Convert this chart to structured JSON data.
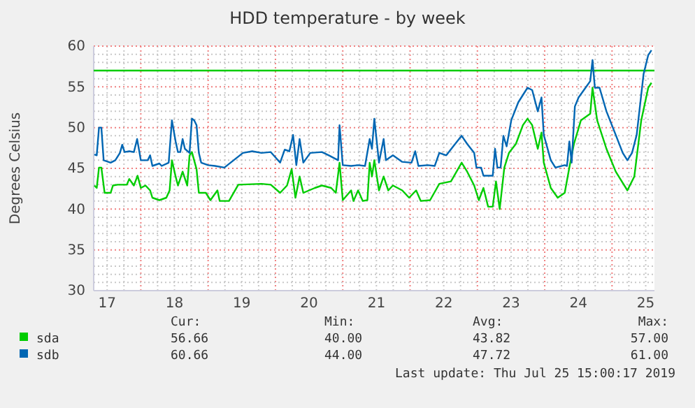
{
  "chart_data": {
    "type": "line",
    "title": "HDD temperature - by week",
    "ylabel": "Degrees Celsius",
    "xlim": [
      17.3,
      25.63
    ],
    "ylim": [
      30,
      60
    ],
    "xticks": [
      {
        "value": 17.5,
        "label": "17"
      },
      {
        "value": 17.75,
        "label": null
      },
      {
        "value": 18,
        "label": null
      },
      {
        "value": 18.25,
        "label": null
      },
      {
        "value": 18.5,
        "label": "18"
      },
      {
        "value": 18.75,
        "label": null
      },
      {
        "value": 19,
        "label": null
      },
      {
        "value": 19.25,
        "label": null
      },
      {
        "value": 19.5,
        "label": "19"
      },
      {
        "value": 19.75,
        "label": null
      },
      {
        "value": 20,
        "label": null
      },
      {
        "value": 20.25,
        "label": null
      },
      {
        "value": 20.5,
        "label": "20"
      },
      {
        "value": 20.75,
        "label": null
      },
      {
        "value": 21,
        "label": null
      },
      {
        "value": 21.25,
        "label": null
      },
      {
        "value": 21.5,
        "label": "21"
      },
      {
        "value": 21.75,
        "label": null
      },
      {
        "value": 22,
        "label": null
      },
      {
        "value": 22.25,
        "label": null
      },
      {
        "value": 22.5,
        "label": "22"
      },
      {
        "value": 22.75,
        "label": null
      },
      {
        "value": 23,
        "label": null
      },
      {
        "value": 23.25,
        "label": null
      },
      {
        "value": 23.5,
        "label": "23"
      },
      {
        "value": 23.75,
        "label": null
      },
      {
        "value": 24,
        "label": null
      },
      {
        "value": 24.25,
        "label": null
      },
      {
        "value": 24.5,
        "label": "24"
      },
      {
        "value": 24.75,
        "label": null
      },
      {
        "value": 25,
        "label": null
      },
      {
        "value": 25.25,
        "label": null
      },
      {
        "value": 25.5,
        "label": "25"
      }
    ],
    "yticks": [
      30,
      {
        "value": 31,
        "label": null
      },
      {
        "value": 32,
        "label": null
      },
      {
        "value": 33,
        "label": null
      },
      {
        "value": 34,
        "label": null
      },
      35,
      {
        "value": 36,
        "label": null
      },
      {
        "value": 37,
        "label": null
      },
      {
        "value": 38,
        "label": null
      },
      {
        "value": 39,
        "label": null
      },
      40,
      {
        "value": 41,
        "label": null
      },
      {
        "value": 42,
        "label": null
      },
      {
        "value": 43,
        "label": null
      },
      {
        "value": 44,
        "label": null
      },
      45,
      {
        "value": 46,
        "label": null
      },
      {
        "value": 47,
        "label": null
      },
      {
        "value": 48,
        "label": null
      },
      {
        "value": 49,
        "label": null
      },
      50,
      {
        "value": 51,
        "label": null
      },
      {
        "value": 52,
        "label": null
      },
      {
        "value": 53,
        "label": null
      },
      {
        "value": 54,
        "label": null
      },
      55,
      {
        "value": 56,
        "label": null
      },
      {
        "value": 57,
        "label": null
      },
      {
        "value": 58,
        "label": null
      },
      {
        "value": 59,
        "label": null
      },
      60
    ],
    "grid": true,
    "legend": "bottom",
    "line_style": "solid",
    "ref_lines": [
      {
        "axis": "y",
        "value": 57,
        "color": "#00cc00"
      }
    ],
    "series": [
      {
        "name": "sda",
        "color": "#00cc00",
        "x": [
          17.31,
          17.345,
          17.379,
          17.414,
          17.462,
          17.552,
          17.586,
          17.655,
          17.793,
          17.828,
          17.897,
          17.952,
          18,
          18.069,
          18.138,
          18.172,
          18.276,
          18.379,
          18.428,
          18.462,
          18.517,
          18.552,
          18.621,
          18.69,
          18.724,
          18.759,
          18.828,
          18.862,
          18.966,
          19.034,
          19.138,
          19.172,
          19.31,
          19.448,
          19.793,
          19.931,
          20.069,
          20.172,
          20.241,
          20.297,
          20.359,
          20.414,
          20.586,
          20.69,
          20.828,
          20.897,
          20.952,
          21,
          21.124,
          21.159,
          21.228,
          21.297,
          21.366,
          21.4,
          21.434,
          21.469,
          21.538,
          21.607,
          21.676,
          21.745,
          21.883,
          21.986,
          22.09,
          22.159,
          22.297,
          22.4,
          22.434,
          22.607,
          22.766,
          22.848,
          22.952,
          23.021,
          23.09,
          23.159,
          23.228,
          23.276,
          23.331,
          23.4,
          23.469,
          23.572,
          23.676,
          23.745,
          23.814,
          23.897,
          23.952,
          23.986,
          24.09,
          24.193,
          24.297,
          24.366,
          24.434,
          24.538,
          24.676,
          24.71,
          24.779,
          24.917,
          25.055,
          25.228,
          25.331,
          25.434,
          25.538,
          25.586
        ],
        "values": [
          42.9,
          42.6,
          45.1,
          45.1,
          42,
          42,
          42.9,
          43,
          43,
          43.7,
          42.9,
          44.1,
          42.6,
          42.9,
          42.3,
          41.4,
          41.1,
          41.4,
          42.3,
          46,
          44,
          42.9,
          44.6,
          42.9,
          46.6,
          47,
          44.9,
          42,
          42,
          41.1,
          42.3,
          41,
          41,
          43,
          43.1,
          43,
          42,
          42.9,
          44.9,
          41.4,
          44,
          42,
          42.6,
          42.9,
          42.6,
          42,
          45.7,
          41.1,
          42.3,
          41,
          42.3,
          41,
          41.1,
          45.7,
          44,
          46,
          42.3,
          44,
          42.3,
          42.9,
          42.3,
          41.4,
          42.3,
          41,
          41.1,
          42.6,
          43.1,
          43.4,
          45.7,
          44.6,
          42.9,
          41.1,
          42.6,
          40.3,
          40.3,
          43.4,
          40,
          45.1,
          46.9,
          48,
          50.3,
          51.1,
          50.3,
          47.4,
          49.4,
          45.7,
          42.6,
          41.4,
          42,
          45.1,
          48,
          50.9,
          51.7,
          54.9,
          50.9,
          47.4,
          44.6,
          42.3,
          44,
          50.9,
          54.9,
          55.5
        ]
      },
      {
        "name": "sdb",
        "color": "#0066b3",
        "x": [
          17.31,
          17.345,
          17.379,
          17.414,
          17.448,
          17.552,
          17.621,
          17.69,
          17.724,
          17.759,
          17.828,
          17.897,
          17.945,
          17.979,
          18,
          18.103,
          18.138,
          18.172,
          18.276,
          18.31,
          18.414,
          18.462,
          18.517,
          18.552,
          18.586,
          18.621,
          18.655,
          18.724,
          18.759,
          18.793,
          18.828,
          18.862,
          18.897,
          19,
          19.103,
          19.241,
          19.379,
          19.517,
          19.655,
          19.793,
          19.931,
          20.069,
          20.138,
          20.207,
          20.262,
          20.31,
          20.359,
          20.414,
          20.517,
          20.69,
          20.793,
          20.862,
          20.931,
          20.952,
          21,
          21.124,
          21.228,
          21.331,
          21.4,
          21.434,
          21.469,
          21.538,
          21.607,
          21.641,
          21.745,
          21.883,
          22.021,
          22.076,
          22.124,
          22.262,
          22.366,
          22.434,
          22.538,
          22.641,
          22.766,
          22.848,
          22.952,
          22.986,
          23.055,
          23.09,
          23.228,
          23.262,
          23.297,
          23.345,
          23.386,
          23.434,
          23.503,
          23.607,
          23.676,
          23.745,
          23.814,
          23.897,
          23.952,
          23.986,
          24.09,
          24.159,
          24.297,
          24.331,
          24.366,
          24.4,
          24.448,
          24.503,
          24.607,
          24.676,
          24.71,
          24.745,
          24.814,
          24.917,
          25.055,
          25.159,
          25.228,
          25.297,
          25.366,
          25.469,
          25.538,
          25.586
        ],
        "values": [
          46.7,
          46.6,
          50,
          50,
          46,
          45.7,
          46,
          46.9,
          47.9,
          47,
          47.1,
          47,
          48.6,
          47,
          46,
          46,
          46.6,
          45.3,
          45.6,
          45.3,
          45.7,
          50.9,
          48.3,
          47,
          47,
          48.6,
          47.4,
          46.9,
          51.1,
          50.9,
          50.3,
          46.9,
          45.7,
          45.4,
          45.3,
          45.1,
          46,
          46.9,
          47.1,
          46.9,
          47,
          45.7,
          47.3,
          47.1,
          49.1,
          45.4,
          48.6,
          45.7,
          46.9,
          47,
          46.6,
          46.3,
          46,
          50.3,
          45.4,
          45.3,
          45.4,
          45.3,
          48.6,
          47.4,
          51.1,
          45.7,
          48.6,
          46,
          46.6,
          45.8,
          45.7,
          47.1,
          45.3,
          45.4,
          45.3,
          46.9,
          46.6,
          47.7,
          49,
          48,
          46.9,
          45.1,
          45.1,
          44.1,
          44.1,
          47.4,
          45.1,
          45.1,
          49,
          47.7,
          50.9,
          53.1,
          54,
          54.9,
          54.6,
          52,
          53.7,
          49.1,
          46,
          45.1,
          45.4,
          45.3,
          48.3,
          45.7,
          52.6,
          53.7,
          54.9,
          55.7,
          58.3,
          54.9,
          54.9,
          52,
          49.1,
          46.9,
          46,
          46.9,
          49.1,
          56.6,
          58.9,
          59.5
        ]
      }
    ],
    "annotations": [
      "Cur:",
      "Min:",
      "Avg:",
      "Max:",
      "56.66",
      "40.00",
      "43.82",
      "57.00",
      "60.66",
      "44.00",
      "47.72",
      "61.00",
      "Last update: Thu Jul 25 15:00:17 2019"
    ]
  }
}
